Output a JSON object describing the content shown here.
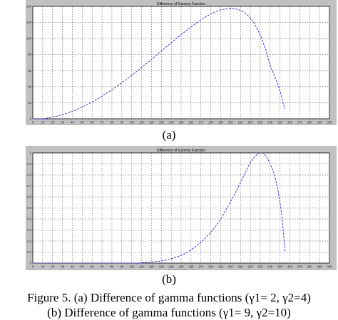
{
  "chart_data": [
    {
      "type": "line",
      "title": "Difference of Gamma Function",
      "xlabel": "Input Intensity Level",
      "ylabel": "Output Intensity Level",
      "xlim": [
        0,
        300
      ],
      "ylim": [
        0,
        140
      ],
      "xticks": [
        0,
        10,
        20,
        30,
        40,
        50,
        60,
        70,
        80,
        90,
        100,
        110,
        120,
        130,
        140,
        150,
        160,
        170,
        180,
        190,
        200,
        210,
        220,
        230,
        240,
        250,
        260,
        270,
        280,
        290,
        300
      ],
      "yticks": [
        0,
        20,
        40,
        60,
        80,
        100,
        120,
        140
      ],
      "grid": true,
      "series": [
        {
          "color": "#3a3ae0",
          "x": [
            0,
            10,
            20,
            30,
            40,
            50,
            60,
            70,
            80,
            90,
            100,
            110,
            120,
            130,
            140,
            150,
            160,
            170,
            180,
            190,
            200,
            205,
            210,
            215,
            220,
            225,
            230,
            235,
            240,
            245,
            250,
            253,
            255
          ],
          "y": [
            0,
            0,
            2.2,
            5.3,
            9.4,
            14.6,
            20.9,
            28.2,
            36.1,
            44.9,
            54.1,
            63.9,
            74.0,
            84.4,
            94.7,
            104.8,
            114.5,
            123.2,
            130.5,
            135.5,
            137.5,
            136.9,
            135.0,
            131.4,
            125.4,
            116.6,
            104.2,
            87.8,
            66.6,
            52.0,
            35.0,
            20.0,
            12.5
          ]
        }
      ]
    },
    {
      "type": "line",
      "title": "Difference of Gamma Function",
      "xlabel": "Input Intensity Level",
      "ylabel": "Output Intensity Level",
      "xlim": [
        0,
        300
      ],
      "ylim": [
        0,
        1
      ],
      "xticks": [
        0,
        10,
        20,
        30,
        40,
        50,
        60,
        70,
        80,
        90,
        100,
        110,
        120,
        130,
        140,
        150,
        160,
        170,
        180,
        190,
        200,
        210,
        220,
        230,
        240,
        250,
        260,
        270,
        280,
        290,
        300
      ],
      "yticks": [
        0,
        0.1,
        0.2,
        0.3,
        0.4,
        0.5,
        0.6,
        0.7,
        0.8,
        0.9,
        1
      ],
      "grid": true,
      "series": [
        {
          "color": "#3a3ae0",
          "x": [
            0,
            100,
            110,
            120,
            130,
            140,
            150,
            160,
            170,
            180,
            190,
            200,
            205,
            210,
            215,
            220,
            225,
            230,
            235,
            240,
            245,
            250,
            253,
            255
          ],
          "y": [
            0,
            0,
            0.005,
            0.01,
            0.02,
            0.04,
            0.07,
            0.12,
            0.19,
            0.28,
            0.4,
            0.56,
            0.64,
            0.73,
            0.82,
            0.91,
            0.97,
            1.0,
            0.98,
            0.9,
            0.78,
            0.55,
            0.32,
            0.1
          ]
        }
      ]
    }
  ],
  "labels": {
    "panel_a": "(a)",
    "panel_b": "(b)"
  },
  "caption": {
    "line1": "Figure 5.  (a) Difference of gamma functions (γ1= 2, γ2=4)",
    "line2": "(b) Difference of gamma functions (γ1= 9, γ2=10)"
  }
}
